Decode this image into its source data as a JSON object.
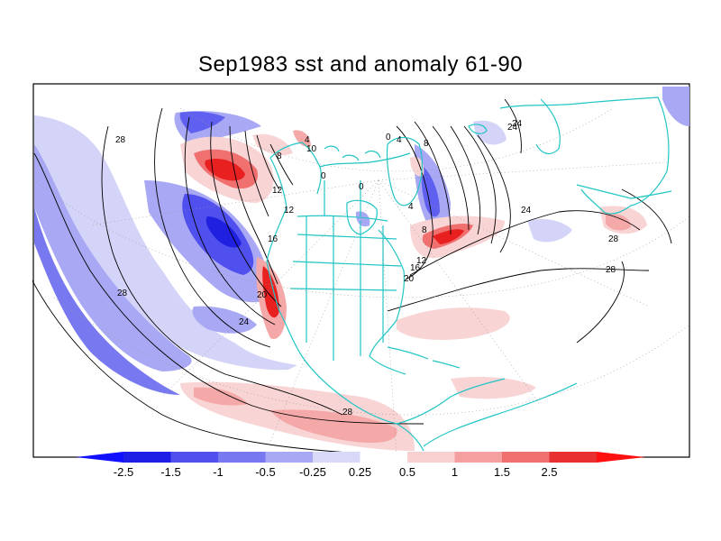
{
  "title": "Sep1983 sst and anomaly 61-90",
  "colors": {
    "coast": "#22c5c5",
    "contour": "#000000",
    "grid": "#999999",
    "neg_strong": "#2020e0",
    "neg_mid": "#6060f0",
    "neg_light": "#a0a0f4",
    "neg_pale": "#d4d4f8",
    "pos_pale": "#f8d4d4",
    "pos_light": "#f4a8a8",
    "pos_mid": "#f07070",
    "pos_strong": "#e82020"
  },
  "contour_labels": [
    "28",
    "28",
    "28",
    "28",
    "24",
    "24",
    "24",
    "20",
    "20",
    "16",
    "16",
    "12",
    "12",
    "12",
    "8",
    "8",
    "8",
    "4",
    "4",
    "4",
    "10",
    "0",
    "0",
    "0",
    "28",
    "24"
  ],
  "colorbar": {
    "labels": [
      "-2.5",
      "-1.5",
      "-1",
      "-0.5",
      "-0.25",
      "0.25",
      "0.5",
      "1",
      "1.5",
      "2.5"
    ],
    "colors": [
      "#1e1ee6",
      "#5050ee",
      "#7878f0",
      "#a8a8f4",
      "#d8d8f8",
      "#ffffff",
      "#f8d0d0",
      "#f4a0a0",
      "#f07070",
      "#e83030",
      "#ff0000"
    ],
    "left_arrow": "#1010ff",
    "right_arrow": "#ff1010"
  }
}
